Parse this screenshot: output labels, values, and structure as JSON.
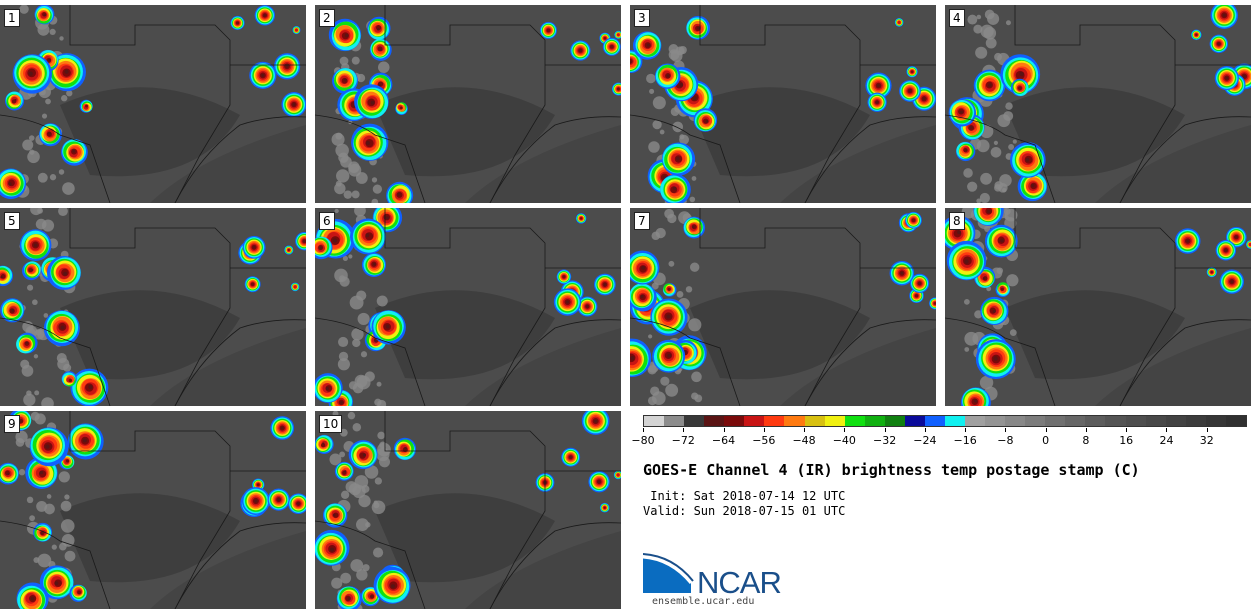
{
  "panels": [
    {
      "label": "1"
    },
    {
      "label": "2"
    },
    {
      "label": "3"
    },
    {
      "label": "4"
    },
    {
      "label": "5"
    },
    {
      "label": "6"
    },
    {
      "label": "7"
    },
    {
      "label": "8"
    },
    {
      "label": "9"
    },
    {
      "label": "10"
    }
  ],
  "colorbar": {
    "colors": [
      "#d4d4d4",
      "#8c8c8c",
      "#383838",
      "#5a1414",
      "#7a0a0a",
      "#c81414",
      "#ff3a10",
      "#ff7a10",
      "#d8c010",
      "#f0f010",
      "#10e010",
      "#10b010",
      "#108010",
      "#0a0a9a",
      "#1060ff",
      "#10f0f0",
      "#a0a0a0",
      "#949494",
      "#888888",
      "#7c7c7c",
      "#707070",
      "#666666",
      "#5c5c5c",
      "#545454",
      "#4e4e4e",
      "#484848",
      "#424242",
      "#3c3c3c",
      "#363636",
      "#303030"
    ],
    "ticks": [
      "−80",
      "−72",
      "−64",
      "−56",
      "−48",
      "−40",
      "−32",
      "−24",
      "−16",
      "−8",
      "0",
      "8",
      "16",
      "24",
      "32"
    ],
    "tick_values": [
      -80,
      -72,
      -64,
      -56,
      -48,
      -40,
      -32,
      -24,
      -16,
      -8,
      0,
      8,
      16,
      24,
      32
    ],
    "min": -80,
    "max": 40
  },
  "title": "GOES-E Channel 4 (IR) brightness temp postage stamp (C)",
  "init_line": " Init: Sat 2018-07-14 12 UTC",
  "valid_line": "Valid: Sun 2018-07-15 01 UTC",
  "logo_text": "NCAR",
  "url": "ensemble.ucar.edu",
  "colors": {
    "accent": "#1a4f8a",
    "logo_blue": "#0a6cc0"
  }
}
